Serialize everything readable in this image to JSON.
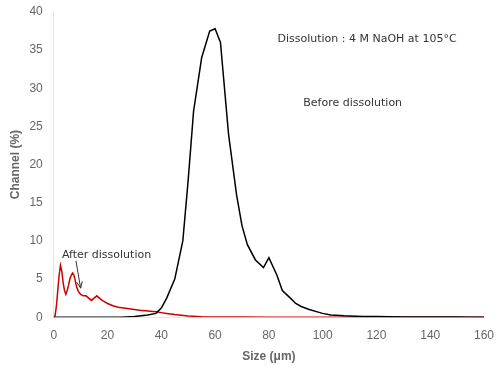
{
  "chart_data": {
    "type": "line",
    "xlabel": "Size (μm)",
    "ylabel": "Channel (%)",
    "annotations": [
      "Dissolution : 4 M NaOH at 105°C",
      "Before dissolution",
      "After dissolution"
    ],
    "xlim": [
      0,
      160
    ],
    "ylim": [
      0,
      40
    ],
    "xticks": [
      0,
      20,
      40,
      60,
      80,
      100,
      120,
      140,
      160
    ],
    "yticks": [
      0,
      5,
      10,
      15,
      20,
      25,
      30,
      35,
      40
    ],
    "grid": false,
    "series": [
      {
        "color": "#000000",
        "x": [
          0,
          0.5,
          1,
          2,
          3,
          5,
          8,
          10,
          15,
          20,
          25,
          30,
          35,
          38,
          40,
          42,
          45,
          48,
          50,
          52,
          55,
          58,
          60,
          62,
          63,
          65,
          68,
          70,
          72,
          75,
          78,
          80,
          83,
          85,
          88,
          90,
          92,
          95,
          98,
          100,
          103,
          105,
          108,
          110,
          115,
          120,
          125,
          130,
          135,
          140,
          145,
          150,
          155,
          160
        ],
        "values": [
          0,
          0,
          0,
          0,
          0,
          0,
          0,
          0,
          0,
          0,
          0,
          0.1,
          0.3,
          0.5,
          1.2,
          2.5,
          5.0,
          10.0,
          18.0,
          27.0,
          34.0,
          37.5,
          37.8,
          36.0,
          32.0,
          24.0,
          16.0,
          12.0,
          9.5,
          7.5,
          6.5,
          7.8,
          5.5,
          3.5,
          2.5,
          1.8,
          1.4,
          1.0,
          0.7,
          0.5,
          0.3,
          0.25,
          0.18,
          0.15,
          0.1,
          0.08,
          0.06,
          0.04,
          0.03,
          0.02,
          0.01,
          0.01,
          0,
          0
        ]
      },
      {
        "color": "#cc0000",
        "x": [
          0,
          0.5,
          1,
          1.5,
          2,
          2.5,
          3,
          3.5,
          4,
          4.5,
          5,
          5.5,
          6,
          6.5,
          7,
          7.5,
          8,
          8.5,
          9,
          9.5,
          10,
          11,
          12,
          13,
          14,
          15,
          16,
          17,
          18,
          19,
          20,
          22,
          24,
          26,
          28,
          30,
          32,
          35,
          38,
          40,
          42,
          45,
          50,
          55,
          60,
          70,
          80,
          100,
          120,
          160
        ],
        "values": [
          0,
          0.2,
          1.5,
          3.5,
          5.5,
          6.8,
          6.0,
          4.5,
          3.5,
          3.0,
          3.5,
          4.2,
          5.0,
          5.5,
          5.8,
          5.5,
          4.8,
          4.0,
          3.5,
          3.2,
          3.0,
          2.8,
          2.8,
          2.5,
          2.2,
          2.5,
          2.8,
          2.5,
          2.2,
          2.0,
          1.8,
          1.5,
          1.3,
          1.2,
          1.1,
          1.0,
          0.9,
          0.8,
          0.7,
          0.6,
          0.5,
          0.35,
          0.15,
          0.05,
          0.02,
          0.01,
          0,
          0,
          0,
          0
        ]
      }
    ]
  }
}
